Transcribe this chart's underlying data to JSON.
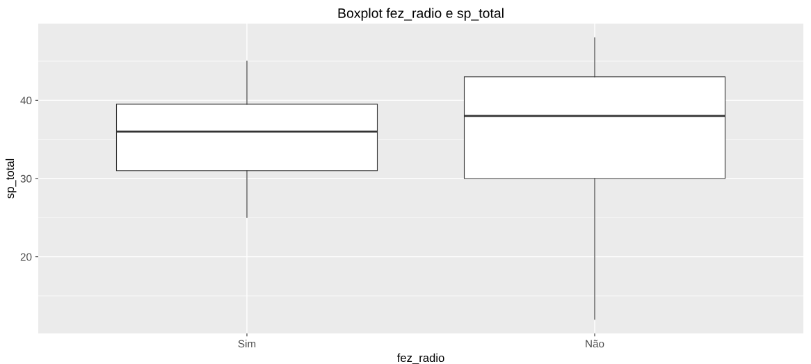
{
  "chart_data": {
    "type": "box",
    "title": "Boxplot fez_radio e sp_total",
    "xlabel": "fez_radio",
    "ylabel": "sp_total",
    "categories": [
      "Sim",
      "Não"
    ],
    "boxes": [
      {
        "low": 25,
        "q1": 31,
        "median": 36,
        "q3": 39.5,
        "high": 45
      },
      {
        "low": 12,
        "q1": 30,
        "median": 38,
        "q3": 43,
        "high": 48
      }
    ],
    "ylim": [
      10.2,
      49.8
    ],
    "yticks": [
      20,
      30,
      40
    ],
    "grid": true
  }
}
